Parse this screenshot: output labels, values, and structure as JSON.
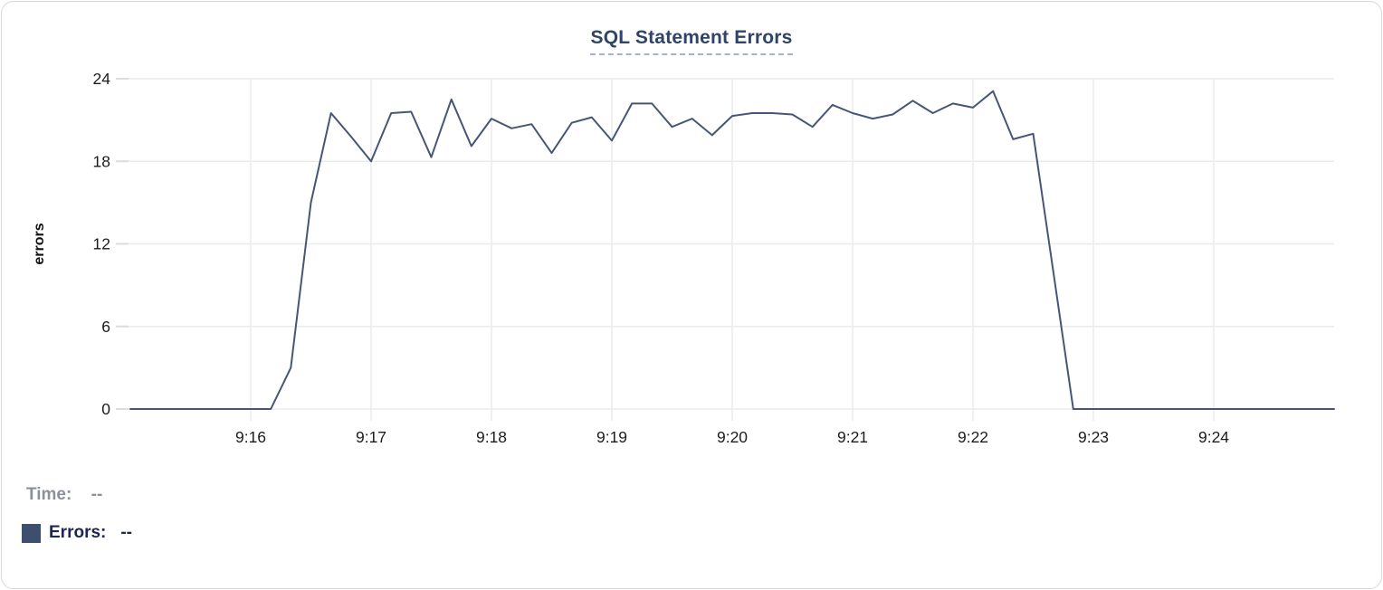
{
  "tooltip": {
    "time_label": "Time:",
    "time_value": "--",
    "errors_label": "Errors:",
    "errors_value": "--",
    "swatch_color": "#3e4f6e"
  },
  "colors": {
    "title": "#2f4468",
    "title_underline": "#a7b2ca",
    "line": "#475677",
    "grid": "#ebebeb",
    "tick_dash": "#dcdcdc",
    "tick_text": "#1c1c1c",
    "axis_label": "#111111",
    "card_border": "#d7d7da",
    "footer_gray": "#8b909a",
    "footer_navy": "#1c2553"
  },
  "chart_data": {
    "type": "line",
    "title": "SQL Statement Errors",
    "xlabel": "",
    "ylabel": "errors",
    "grid": true,
    "legend_position": "below-left",
    "ylim": [
      0,
      24
    ],
    "y_ticks": [
      0,
      6,
      12,
      18,
      24
    ],
    "xlim_sec": [
      0,
      600
    ],
    "x_start_time": "9:15:00",
    "sample_interval_sec": 10,
    "x_ticks": [
      {
        "label": "9:16",
        "offset_sec": 60
      },
      {
        "label": "9:17",
        "offset_sec": 120
      },
      {
        "label": "9:18",
        "offset_sec": 180
      },
      {
        "label": "9:19",
        "offset_sec": 240
      },
      {
        "label": "9:20",
        "offset_sec": 300
      },
      {
        "label": "9:21",
        "offset_sec": 360
      },
      {
        "label": "9:22",
        "offset_sec": 420
      },
      {
        "label": "9:23",
        "offset_sec": 480
      },
      {
        "label": "9:24",
        "offset_sec": 540
      }
    ],
    "series": [
      {
        "name": "Errors",
        "color": "#475677",
        "values": [
          0,
          0,
          0,
          0,
          0,
          0,
          0,
          0,
          3,
          15,
          21.5,
          19.8,
          18,
          21.5,
          21.6,
          18.3,
          22.5,
          19.1,
          21.1,
          20.4,
          20.7,
          18.6,
          20.8,
          21.2,
          19.5,
          22.2,
          22.2,
          20.5,
          21.1,
          19.9,
          21.3,
          21.5,
          21.5,
          21.4,
          20.5,
          22.1,
          21.5,
          21.1,
          21.4,
          22.4,
          21.5,
          22.2,
          21.9,
          23.1,
          19.6,
          20,
          10,
          0,
          0,
          0,
          0,
          0,
          0,
          0,
          0,
          0,
          0,
          0,
          0,
          0,
          0
        ]
      }
    ]
  }
}
